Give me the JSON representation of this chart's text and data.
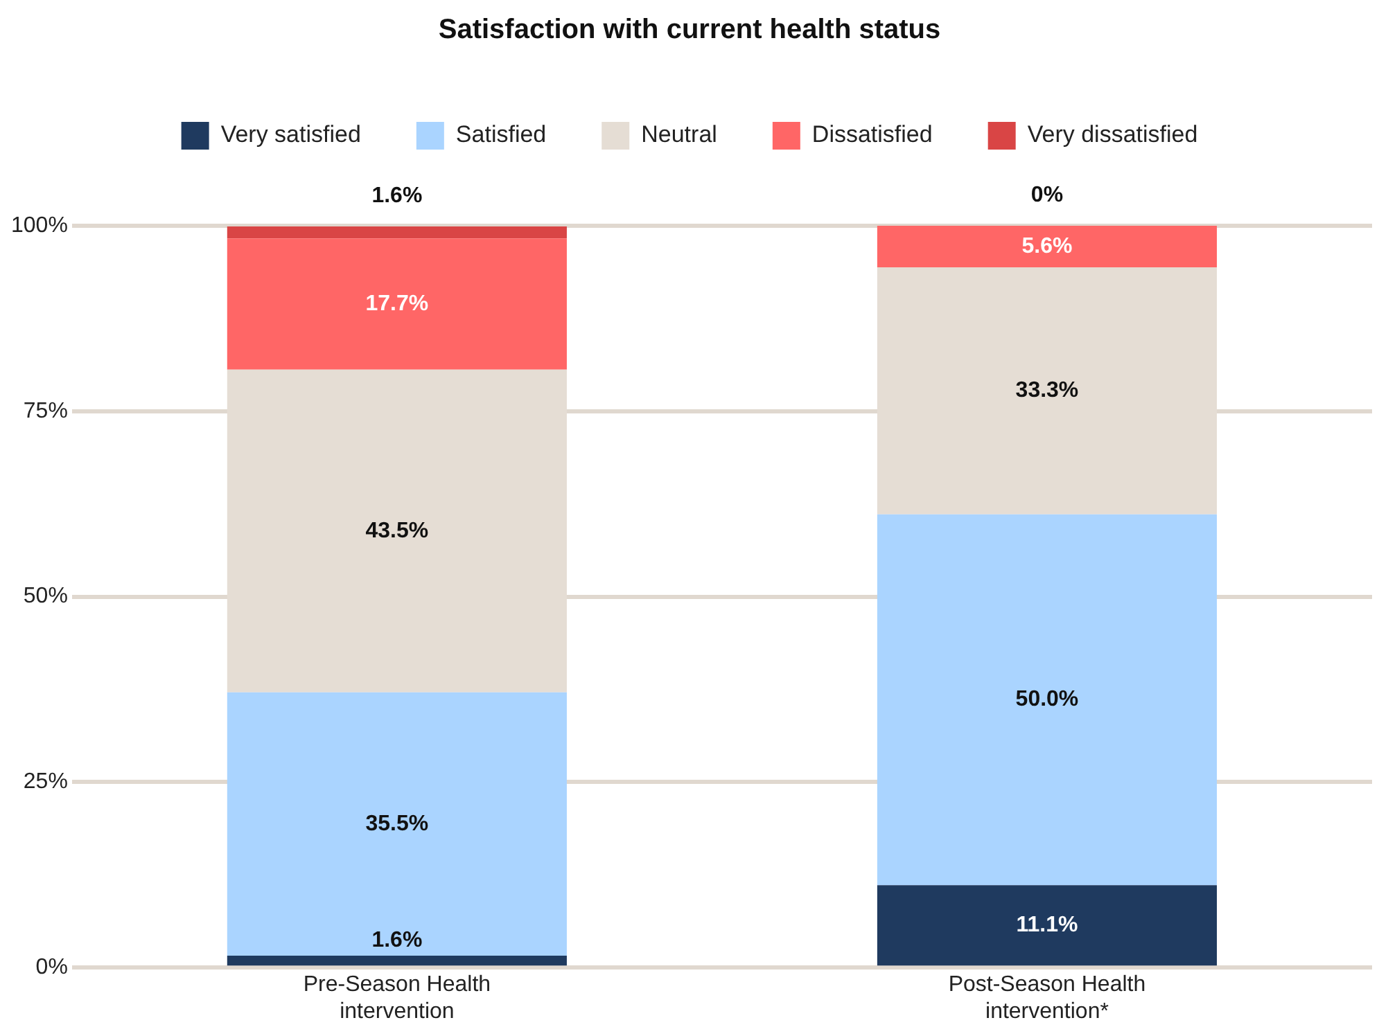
{
  "chart_data": {
    "type": "bar",
    "title": "Satisfaction with current health status",
    "categories": [
      "Pre-Season Health intervention",
      "Post-Season Health intervention*"
    ],
    "stacked": true,
    "ylim": [
      0,
      100
    ],
    "yticks": [
      {
        "value": 0,
        "label": "0%"
      },
      {
        "value": 25,
        "label": "25%"
      },
      {
        "value": 50,
        "label": "50%"
      },
      {
        "value": 75,
        "label": "75%"
      },
      {
        "value": 100,
        "label": "100%"
      }
    ],
    "grid": "y",
    "legend": "top",
    "series": [
      {
        "name": "Very satisfied",
        "color": "#1f3a5f",
        "values": [
          1.6,
          11.1
        ],
        "value_labels": [
          "1.6%",
          "11.1%"
        ]
      },
      {
        "name": "Satisfied",
        "color": "#aad4ff",
        "values": [
          35.5,
          50.0
        ],
        "value_labels": [
          "35.5%",
          "50.0%"
        ]
      },
      {
        "name": "Neutral",
        "color": "#e5ddd4",
        "values": [
          43.5,
          33.3
        ],
        "value_labels": [
          "43.5%",
          "33.3%"
        ]
      },
      {
        "name": "Dissatisfied",
        "color": "#ff6666",
        "values": [
          17.7,
          5.6
        ],
        "value_labels": [
          "17.7%",
          "5.6%"
        ]
      },
      {
        "name": "Very dissatisfied",
        "color": "#d94545",
        "values": [
          1.6,
          0
        ],
        "value_labels": [
          "1.6%",
          "0%"
        ]
      }
    ]
  }
}
